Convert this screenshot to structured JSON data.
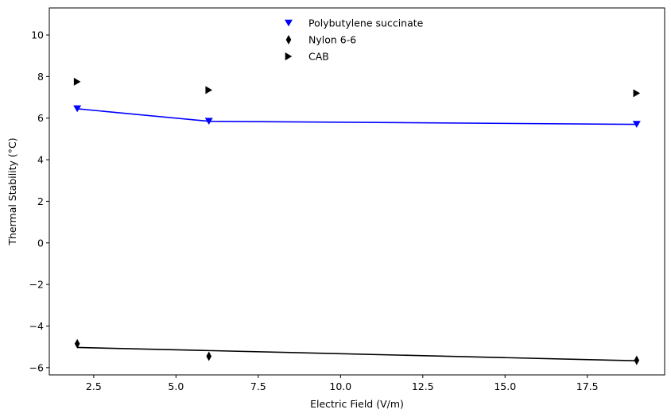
{
  "chart_data": {
    "type": "scatter",
    "xlabel": "Electric Field (V/m)",
    "ylabel": "Thermal Stability (°C)",
    "xlim": [
      1.15,
      19.85
    ],
    "ylim": [
      -6.35,
      11.3
    ],
    "x_ticks": [
      2.5,
      5.0,
      7.5,
      10.0,
      12.5,
      15.0,
      17.5
    ],
    "x_tick_labels": [
      "2.5",
      "5.0",
      "7.5",
      "10.0",
      "12.5",
      "15.0",
      "17.5"
    ],
    "y_ticks": [
      -6,
      -4,
      -2,
      0,
      2,
      4,
      6,
      8,
      10
    ],
    "y_tick_labels": [
      "−6",
      "−4",
      "−2",
      "0",
      "2",
      "4",
      "6",
      "8",
      "10"
    ],
    "grid": false,
    "legend_position": "top-center",
    "series": [
      {
        "name": "Polybutylene succinate",
        "marker": "triangle-down",
        "color": "#0000ff",
        "x": [
          2,
          6,
          19
        ],
        "y": [
          6.45,
          5.85,
          5.7
        ],
        "fit_line": [
          [
            2,
            6.45
          ],
          [
            6,
            5.85
          ],
          [
            19,
            5.7
          ]
        ]
      },
      {
        "name": "Nylon 6-6",
        "marker": "thin-diamond",
        "color": "#000000",
        "x": [
          2,
          6,
          19
        ],
        "y": [
          -4.85,
          -5.45,
          -5.65
        ],
        "fit_line": [
          [
            2,
            -5.03
          ],
          [
            6,
            -5.18
          ],
          [
            19,
            -5.67
          ]
        ]
      },
      {
        "name": "CAB",
        "marker": "triangle-right",
        "color": "#000000",
        "x": [
          2,
          6,
          19
        ],
        "y": [
          7.75,
          7.35,
          7.2
        ]
      }
    ]
  }
}
